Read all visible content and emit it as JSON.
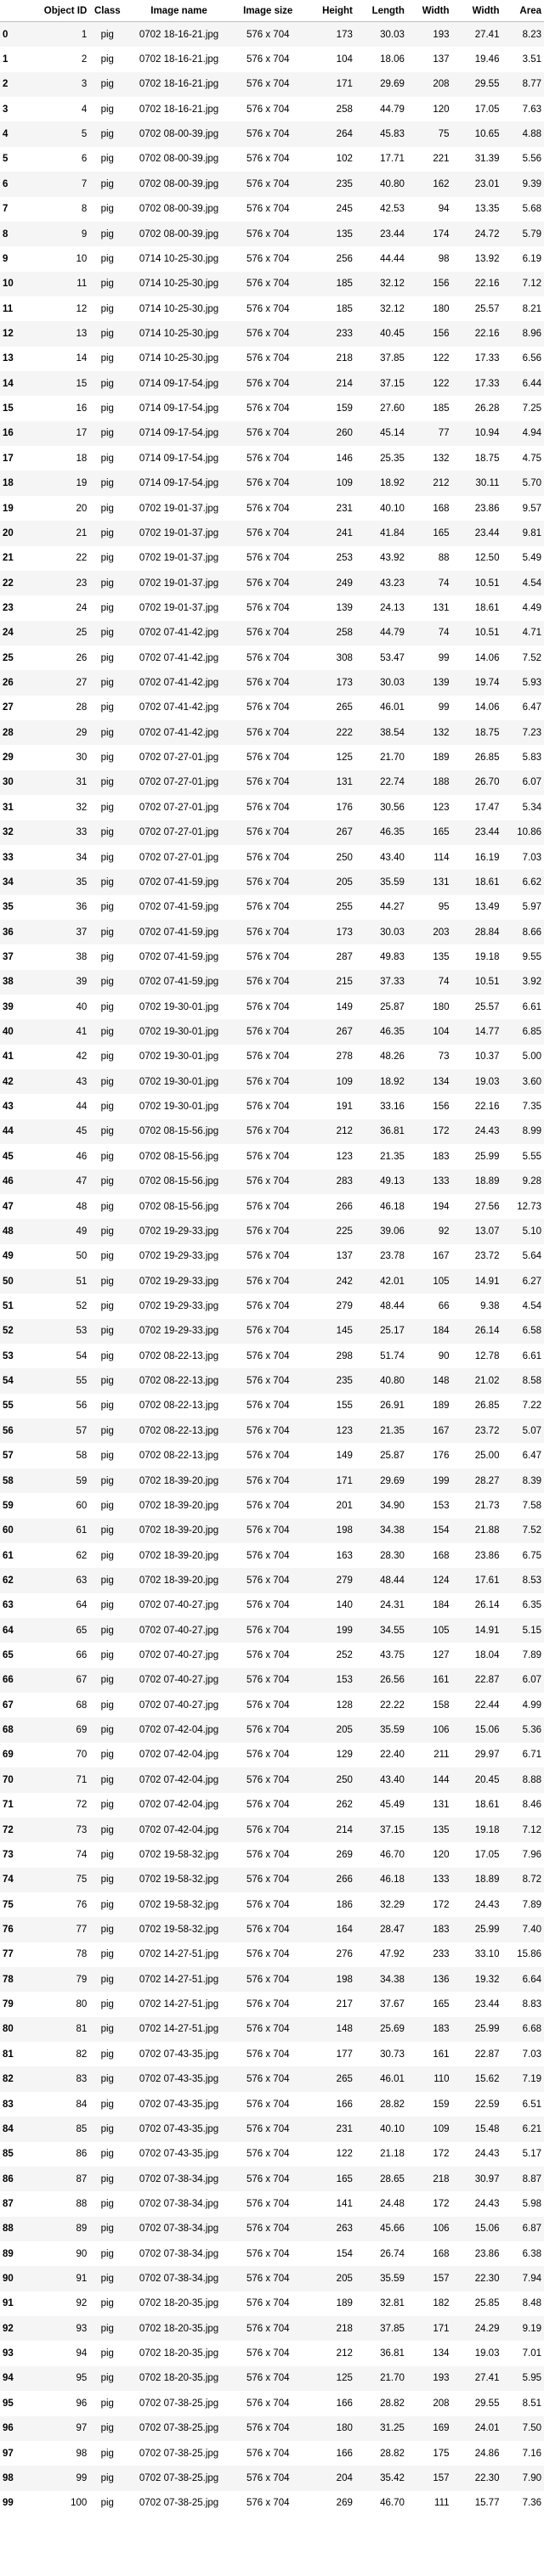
{
  "columns": [
    "Object ID",
    "Class",
    "Image name",
    "Image size",
    "Height",
    "Length",
    "Width",
    "Width",
    "Area"
  ],
  "rows": [
    [
      "0",
      "1",
      "pig",
      "0702 18-16-21.jpg",
      "576 x 704",
      "173",
      "30.03",
      "193",
      "27.41",
      "8.23"
    ],
    [
      "1",
      "2",
      "pig",
      "0702 18-16-21.jpg",
      "576 x 704",
      "104",
      "18.06",
      "137",
      "19.46",
      "3.51"
    ],
    [
      "2",
      "3",
      "pig",
      "0702 18-16-21.jpg",
      "576 x 704",
      "171",
      "29.69",
      "208",
      "29.55",
      "8.77"
    ],
    [
      "3",
      "4",
      "pig",
      "0702 18-16-21.jpg",
      "576 x 704",
      "258",
      "44.79",
      "120",
      "17.05",
      "7.63"
    ],
    [
      "4",
      "5",
      "pig",
      "0702 08-00-39.jpg",
      "576 x 704",
      "264",
      "45.83",
      "75",
      "10.65",
      "4.88"
    ],
    [
      "5",
      "6",
      "pig",
      "0702 08-00-39.jpg",
      "576 x 704",
      "102",
      "17.71",
      "221",
      "31.39",
      "5.56"
    ],
    [
      "6",
      "7",
      "pig",
      "0702 08-00-39.jpg",
      "576 x 704",
      "235",
      "40.80",
      "162",
      "23.01",
      "9.39"
    ],
    [
      "7",
      "8",
      "pig",
      "0702 08-00-39.jpg",
      "576 x 704",
      "245",
      "42.53",
      "94",
      "13.35",
      "5.68"
    ],
    [
      "8",
      "9",
      "pig",
      "0702 08-00-39.jpg",
      "576 x 704",
      "135",
      "23.44",
      "174",
      "24.72",
      "5.79"
    ],
    [
      "9",
      "10",
      "pig",
      "0714 10-25-30.jpg",
      "576 x 704",
      "256",
      "44.44",
      "98",
      "13.92",
      "6.19"
    ],
    [
      "10",
      "11",
      "pig",
      "0714 10-25-30.jpg",
      "576 x 704",
      "185",
      "32.12",
      "156",
      "22.16",
      "7.12"
    ],
    [
      "11",
      "12",
      "pig",
      "0714 10-25-30.jpg",
      "576 x 704",
      "185",
      "32.12",
      "180",
      "25.57",
      "8.21"
    ],
    [
      "12",
      "13",
      "pig",
      "0714 10-25-30.jpg",
      "576 x 704",
      "233",
      "40.45",
      "156",
      "22.16",
      "8.96"
    ],
    [
      "13",
      "14",
      "pig",
      "0714 10-25-30.jpg",
      "576 x 704",
      "218",
      "37.85",
      "122",
      "17.33",
      "6.56"
    ],
    [
      "14",
      "15",
      "pig",
      "0714 09-17-54.jpg",
      "576 x 704",
      "214",
      "37.15",
      "122",
      "17.33",
      "6.44"
    ],
    [
      "15",
      "16",
      "pig",
      "0714 09-17-54.jpg",
      "576 x 704",
      "159",
      "27.60",
      "185",
      "26.28",
      "7.25"
    ],
    [
      "16",
      "17",
      "pig",
      "0714 09-17-54.jpg",
      "576 x 704",
      "260",
      "45.14",
      "77",
      "10.94",
      "4.94"
    ],
    [
      "17",
      "18",
      "pig",
      "0714 09-17-54.jpg",
      "576 x 704",
      "146",
      "25.35",
      "132",
      "18.75",
      "4.75"
    ],
    [
      "18",
      "19",
      "pig",
      "0714 09-17-54.jpg",
      "576 x 704",
      "109",
      "18.92",
      "212",
      "30.11",
      "5.70"
    ],
    [
      "19",
      "20",
      "pig",
      "0702 19-01-37.jpg",
      "576 x 704",
      "231",
      "40.10",
      "168",
      "23.86",
      "9.57"
    ],
    [
      "20",
      "21",
      "pig",
      "0702 19-01-37.jpg",
      "576 x 704",
      "241",
      "41.84",
      "165",
      "23.44",
      "9.81"
    ],
    [
      "21",
      "22",
      "pig",
      "0702 19-01-37.jpg",
      "576 x 704",
      "253",
      "43.92",
      "88",
      "12.50",
      "5.49"
    ],
    [
      "22",
      "23",
      "pig",
      "0702 19-01-37.jpg",
      "576 x 704",
      "249",
      "43.23",
      "74",
      "10.51",
      "4.54"
    ],
    [
      "23",
      "24",
      "pig",
      "0702 19-01-37.jpg",
      "576 x 704",
      "139",
      "24.13",
      "131",
      "18.61",
      "4.49"
    ],
    [
      "24",
      "25",
      "pig",
      "0702 07-41-42.jpg",
      "576 x 704",
      "258",
      "44.79",
      "74",
      "10.51",
      "4.71"
    ],
    [
      "25",
      "26",
      "pig",
      "0702 07-41-42.jpg",
      "576 x 704",
      "308",
      "53.47",
      "99",
      "14.06",
      "7.52"
    ],
    [
      "26",
      "27",
      "pig",
      "0702 07-41-42.jpg",
      "576 x 704",
      "173",
      "30.03",
      "139",
      "19.74",
      "5.93"
    ],
    [
      "27",
      "28",
      "pig",
      "0702 07-41-42.jpg",
      "576 x 704",
      "265",
      "46.01",
      "99",
      "14.06",
      "6.47"
    ],
    [
      "28",
      "29",
      "pig",
      "0702 07-41-42.jpg",
      "576 x 704",
      "222",
      "38.54",
      "132",
      "18.75",
      "7.23"
    ],
    [
      "29",
      "30",
      "pig",
      "0702 07-27-01.jpg",
      "576 x 704",
      "125",
      "21.70",
      "189",
      "26.85",
      "5.83"
    ],
    [
      "30",
      "31",
      "pig",
      "0702 07-27-01.jpg",
      "576 x 704",
      "131",
      "22.74",
      "188",
      "26.70",
      "6.07"
    ],
    [
      "31",
      "32",
      "pig",
      "0702 07-27-01.jpg",
      "576 x 704",
      "176",
      "30.56",
      "123",
      "17.47",
      "5.34"
    ],
    [
      "32",
      "33",
      "pig",
      "0702 07-27-01.jpg",
      "576 x 704",
      "267",
      "46.35",
      "165",
      "23.44",
      "10.86"
    ],
    [
      "33",
      "34",
      "pig",
      "0702 07-27-01.jpg",
      "576 x 704",
      "250",
      "43.40",
      "114",
      "16.19",
      "7.03"
    ],
    [
      "34",
      "35",
      "pig",
      "0702 07-41-59.jpg",
      "576 x 704",
      "205",
      "35.59",
      "131",
      "18.61",
      "6.62"
    ],
    [
      "35",
      "36",
      "pig",
      "0702 07-41-59.jpg",
      "576 x 704",
      "255",
      "44.27",
      "95",
      "13.49",
      "5.97"
    ],
    [
      "36",
      "37",
      "pig",
      "0702 07-41-59.jpg",
      "576 x 704",
      "173",
      "30.03",
      "203",
      "28.84",
      "8.66"
    ],
    [
      "37",
      "38",
      "pig",
      "0702 07-41-59.jpg",
      "576 x 704",
      "287",
      "49.83",
      "135",
      "19.18",
      "9.55"
    ],
    [
      "38",
      "39",
      "pig",
      "0702 07-41-59.jpg",
      "576 x 704",
      "215",
      "37.33",
      "74",
      "10.51",
      "3.92"
    ],
    [
      "39",
      "40",
      "pig",
      "0702 19-30-01.jpg",
      "576 x 704",
      "149",
      "25.87",
      "180",
      "25.57",
      "6.61"
    ],
    [
      "40",
      "41",
      "pig",
      "0702 19-30-01.jpg",
      "576 x 704",
      "267",
      "46.35",
      "104",
      "14.77",
      "6.85"
    ],
    [
      "41",
      "42",
      "pig",
      "0702 19-30-01.jpg",
      "576 x 704",
      "278",
      "48.26",
      "73",
      "10.37",
      "5.00"
    ],
    [
      "42",
      "43",
      "pig",
      "0702 19-30-01.jpg",
      "576 x 704",
      "109",
      "18.92",
      "134",
      "19.03",
      "3.60"
    ],
    [
      "43",
      "44",
      "pig",
      "0702 19-30-01.jpg",
      "576 x 704",
      "191",
      "33.16",
      "156",
      "22.16",
      "7.35"
    ],
    [
      "44",
      "45",
      "pig",
      "0702 08-15-56.jpg",
      "576 x 704",
      "212",
      "36.81",
      "172",
      "24.43",
      "8.99"
    ],
    [
      "45",
      "46",
      "pig",
      "0702 08-15-56.jpg",
      "576 x 704",
      "123",
      "21.35",
      "183",
      "25.99",
      "5.55"
    ],
    [
      "46",
      "47",
      "pig",
      "0702 08-15-56.jpg",
      "576 x 704",
      "283",
      "49.13",
      "133",
      "18.89",
      "9.28"
    ],
    [
      "47",
      "48",
      "pig",
      "0702 08-15-56.jpg",
      "576 x 704",
      "266",
      "46.18",
      "194",
      "27.56",
      "12.73"
    ],
    [
      "48",
      "49",
      "pig",
      "0702 19-29-33.jpg",
      "576 x 704",
      "225",
      "39.06",
      "92",
      "13.07",
      "5.10"
    ],
    [
      "49",
      "50",
      "pig",
      "0702 19-29-33.jpg",
      "576 x 704",
      "137",
      "23.78",
      "167",
      "23.72",
      "5.64"
    ],
    [
      "50",
      "51",
      "pig",
      "0702 19-29-33.jpg",
      "576 x 704",
      "242",
      "42.01",
      "105",
      "14.91",
      "6.27"
    ],
    [
      "51",
      "52",
      "pig",
      "0702 19-29-33.jpg",
      "576 x 704",
      "279",
      "48.44",
      "66",
      "9.38",
      "4.54"
    ],
    [
      "52",
      "53",
      "pig",
      "0702 19-29-33.jpg",
      "576 x 704",
      "145",
      "25.17",
      "184",
      "26.14",
      "6.58"
    ],
    [
      "53",
      "54",
      "pig",
      "0702 08-22-13.jpg",
      "576 x 704",
      "298",
      "51.74",
      "90",
      "12.78",
      "6.61"
    ],
    [
      "54",
      "55",
      "pig",
      "0702 08-22-13.jpg",
      "576 x 704",
      "235",
      "40.80",
      "148",
      "21.02",
      "8.58"
    ],
    [
      "55",
      "56",
      "pig",
      "0702 08-22-13.jpg",
      "576 x 704",
      "155",
      "26.91",
      "189",
      "26.85",
      "7.22"
    ],
    [
      "56",
      "57",
      "pig",
      "0702 08-22-13.jpg",
      "576 x 704",
      "123",
      "21.35",
      "167",
      "23.72",
      "5.07"
    ],
    [
      "57",
      "58",
      "pig",
      "0702 08-22-13.jpg",
      "576 x 704",
      "149",
      "25.87",
      "176",
      "25.00",
      "6.47"
    ],
    [
      "58",
      "59",
      "pig",
      "0702 18-39-20.jpg",
      "576 x 704",
      "171",
      "29.69",
      "199",
      "28.27",
      "8.39"
    ],
    [
      "59",
      "60",
      "pig",
      "0702 18-39-20.jpg",
      "576 x 704",
      "201",
      "34.90",
      "153",
      "21.73",
      "7.58"
    ],
    [
      "60",
      "61",
      "pig",
      "0702 18-39-20.jpg",
      "576 x 704",
      "198",
      "34.38",
      "154",
      "21.88",
      "7.52"
    ],
    [
      "61",
      "62",
      "pig",
      "0702 18-39-20.jpg",
      "576 x 704",
      "163",
      "28.30",
      "168",
      "23.86",
      "6.75"
    ],
    [
      "62",
      "63",
      "pig",
      "0702 18-39-20.jpg",
      "576 x 704",
      "279",
      "48.44",
      "124",
      "17.61",
      "8.53"
    ],
    [
      "63",
      "64",
      "pig",
      "0702 07-40-27.jpg",
      "576 x 704",
      "140",
      "24.31",
      "184",
      "26.14",
      "6.35"
    ],
    [
      "64",
      "65",
      "pig",
      "0702 07-40-27.jpg",
      "576 x 704",
      "199",
      "34.55",
      "105",
      "14.91",
      "5.15"
    ],
    [
      "65",
      "66",
      "pig",
      "0702 07-40-27.jpg",
      "576 x 704",
      "252",
      "43.75",
      "127",
      "18.04",
      "7.89"
    ],
    [
      "66",
      "67",
      "pig",
      "0702 07-40-27.jpg",
      "576 x 704",
      "153",
      "26.56",
      "161",
      "22.87",
      "6.07"
    ],
    [
      "67",
      "68",
      "pig",
      "0702 07-40-27.jpg",
      "576 x 704",
      "128",
      "22.22",
      "158",
      "22.44",
      "4.99"
    ],
    [
      "68",
      "69",
      "pig",
      "0702 07-42-04.jpg",
      "576 x 704",
      "205",
      "35.59",
      "106",
      "15.06",
      "5.36"
    ],
    [
      "69",
      "70",
      "pig",
      "0702 07-42-04.jpg",
      "576 x 704",
      "129",
      "22.40",
      "211",
      "29.97",
      "6.71"
    ],
    [
      "70",
      "71",
      "pig",
      "0702 07-42-04.jpg",
      "576 x 704",
      "250",
      "43.40",
      "144",
      "20.45",
      "8.88"
    ],
    [
      "71",
      "72",
      "pig",
      "0702 07-42-04.jpg",
      "576 x 704",
      "262",
      "45.49",
      "131",
      "18.61",
      "8.46"
    ],
    [
      "72",
      "73",
      "pig",
      "0702 07-42-04.jpg",
      "576 x 704",
      "214",
      "37.15",
      "135",
      "19.18",
      "7.12"
    ],
    [
      "73",
      "74",
      "pig",
      "0702 19-58-32.jpg",
      "576 x 704",
      "269",
      "46.70",
      "120",
      "17.05",
      "7.96"
    ],
    [
      "74",
      "75",
      "pig",
      "0702 19-58-32.jpg",
      "576 x 704",
      "266",
      "46.18",
      "133",
      "18.89",
      "8.72"
    ],
    [
      "75",
      "76",
      "pig",
      "0702 19-58-32.jpg",
      "576 x 704",
      "186",
      "32.29",
      "172",
      "24.43",
      "7.89"
    ],
    [
      "76",
      "77",
      "pig",
      "0702 19-58-32.jpg",
      "576 x 704",
      "164",
      "28.47",
      "183",
      "25.99",
      "7.40"
    ],
    [
      "77",
      "78",
      "pig",
      "0702 14-27-51.jpg",
      "576 x 704",
      "276",
      "47.92",
      "233",
      "33.10",
      "15.86"
    ],
    [
      "78",
      "79",
      "pig",
      "0702 14-27-51.jpg",
      "576 x 704",
      "198",
      "34.38",
      "136",
      "19.32",
      "6.64"
    ],
    [
      "79",
      "80",
      "pig",
      "0702 14-27-51.jpg",
      "576 x 704",
      "217",
      "37.67",
      "165",
      "23.44",
      "8.83"
    ],
    [
      "80",
      "81",
      "pig",
      "0702 14-27-51.jpg",
      "576 x 704",
      "148",
      "25.69",
      "183",
      "25.99",
      "6.68"
    ],
    [
      "81",
      "82",
      "pig",
      "0702 07-43-35.jpg",
      "576 x 704",
      "177",
      "30.73",
      "161",
      "22.87",
      "7.03"
    ],
    [
      "82",
      "83",
      "pig",
      "0702 07-43-35.jpg",
      "576 x 704",
      "265",
      "46.01",
      "110",
      "15.62",
      "7.19"
    ],
    [
      "83",
      "84",
      "pig",
      "0702 07-43-35.jpg",
      "576 x 704",
      "166",
      "28.82",
      "159",
      "22.59",
      "6.51"
    ],
    [
      "84",
      "85",
      "pig",
      "0702 07-43-35.jpg",
      "576 x 704",
      "231",
      "40.10",
      "109",
      "15.48",
      "6.21"
    ],
    [
      "85",
      "86",
      "pig",
      "0702 07-43-35.jpg",
      "576 x 704",
      "122",
      "21.18",
      "172",
      "24.43",
      "5.17"
    ],
    [
      "86",
      "87",
      "pig",
      "0702 07-38-34.jpg",
      "576 x 704",
      "165",
      "28.65",
      "218",
      "30.97",
      "8.87"
    ],
    [
      "87",
      "88",
      "pig",
      "0702 07-38-34.jpg",
      "576 x 704",
      "141",
      "24.48",
      "172",
      "24.43",
      "5.98"
    ],
    [
      "88",
      "89",
      "pig",
      "0702 07-38-34.jpg",
      "576 x 704",
      "263",
      "45.66",
      "106",
      "15.06",
      "6.87"
    ],
    [
      "89",
      "90",
      "pig",
      "0702 07-38-34.jpg",
      "576 x 704",
      "154",
      "26.74",
      "168",
      "23.86",
      "6.38"
    ],
    [
      "90",
      "91",
      "pig",
      "0702 07-38-34.jpg",
      "576 x 704",
      "205",
      "35.59",
      "157",
      "22.30",
      "7.94"
    ],
    [
      "91",
      "92",
      "pig",
      "0702 18-20-35.jpg",
      "576 x 704",
      "189",
      "32.81",
      "182",
      "25.85",
      "8.48"
    ],
    [
      "92",
      "93",
      "pig",
      "0702 18-20-35.jpg",
      "576 x 704",
      "218",
      "37.85",
      "171",
      "24.29",
      "9.19"
    ],
    [
      "93",
      "94",
      "pig",
      "0702 18-20-35.jpg",
      "576 x 704",
      "212",
      "36.81",
      "134",
      "19.03",
      "7.01"
    ],
    [
      "94",
      "95",
      "pig",
      "0702 18-20-35.jpg",
      "576 x 704",
      "125",
      "21.70",
      "193",
      "27.41",
      "5.95"
    ],
    [
      "95",
      "96",
      "pig",
      "0702 07-38-25.jpg",
      "576 x 704",
      "166",
      "28.82",
      "208",
      "29.55",
      "8.51"
    ],
    [
      "96",
      "97",
      "pig",
      "0702 07-38-25.jpg",
      "576 x 704",
      "180",
      "31.25",
      "169",
      "24.01",
      "7.50"
    ],
    [
      "97",
      "98",
      "pig",
      "0702 07-38-25.jpg",
      "576 x 704",
      "166",
      "28.82",
      "175",
      "24.86",
      "7.16"
    ],
    [
      "98",
      "99",
      "pig",
      "0702 07-38-25.jpg",
      "576 x 704",
      "204",
      "35.42",
      "157",
      "22.30",
      "7.90"
    ],
    [
      "99",
      "100",
      "pig",
      "0702 07-38-25.jpg",
      "576 x 704",
      "269",
      "46.70",
      "111",
      "15.77",
      "7.36"
    ]
  ]
}
